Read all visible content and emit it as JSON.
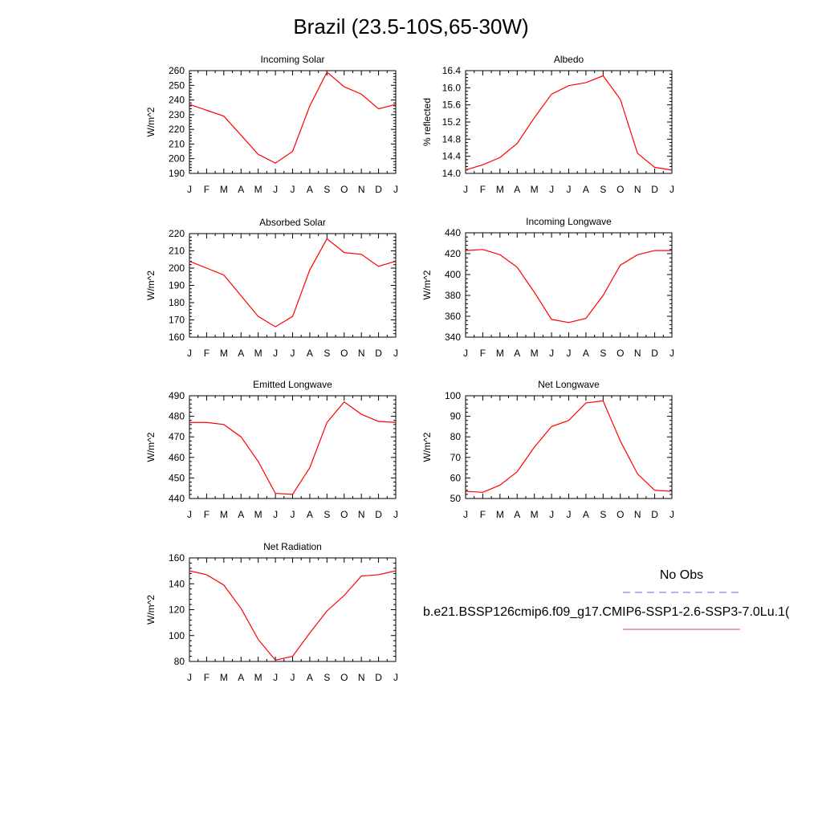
{
  "title": "Brazil (23.5-10S,65-30W)",
  "months": [
    "J",
    "F",
    "M",
    "A",
    "M",
    "J",
    "J",
    "A",
    "S",
    "O",
    "N",
    "D",
    "J"
  ],
  "legend": {
    "obs_label": "No Obs",
    "obs_color": "#6a6ae0",
    "model_label": "b.e21.BSSP126cmip6.f09_g17.CMIP6-SSP1-2.6-SSP3-7.0Lu.1(",
    "model_color": "#e04040"
  },
  "line_color": "#ff0000",
  "chart_data": [
    {
      "type": "line",
      "title": "Incoming Solar",
      "ylabel": "W/m^2",
      "ylim": [
        190,
        260
      ],
      "yticks": [
        190,
        200,
        210,
        220,
        230,
        240,
        250,
        260
      ],
      "ytick_labels": [
        "190",
        "200",
        "210",
        "220",
        "230",
        "240",
        "250",
        "260"
      ],
      "values": [
        237,
        233,
        229,
        216,
        203,
        197,
        205,
        236,
        259,
        249,
        244,
        234,
        237
      ]
    },
    {
      "type": "line",
      "title": "Albedo",
      "ylabel": "% reflected",
      "ylim": [
        14.0,
        16.4
      ],
      "yticks": [
        14.0,
        14.4,
        14.8,
        15.2,
        15.6,
        16.0,
        16.4
      ],
      "ytick_labels": [
        "14.0",
        "14.4",
        "14.8",
        "15.2",
        "15.6",
        "16.0",
        "16.4"
      ],
      "values": [
        14.08,
        14.2,
        14.37,
        14.7,
        15.3,
        15.85,
        16.05,
        16.12,
        16.28,
        15.73,
        14.47,
        14.14,
        14.08
      ]
    },
    {
      "type": "line",
      "title": "Absorbed Solar",
      "ylabel": "W/m^2",
      "ylim": [
        160,
        220
      ],
      "yticks": [
        160,
        170,
        180,
        190,
        200,
        210,
        220
      ],
      "ytick_labels": [
        "160",
        "170",
        "180",
        "190",
        "200",
        "210",
        "220"
      ],
      "values": [
        204,
        200,
        196,
        184,
        172,
        166,
        172,
        199,
        217,
        209,
        208,
        201,
        204
      ]
    },
    {
      "type": "line",
      "title": "Incoming Longwave",
      "ylabel": "W/m^2",
      "ylim": [
        340,
        440
      ],
      "yticks": [
        340,
        360,
        380,
        400,
        420,
        440
      ],
      "ytick_labels": [
        "340",
        "360",
        "380",
        "400",
        "420",
        "440"
      ],
      "values": [
        423,
        424,
        419,
        407,
        383,
        357,
        354,
        358,
        380,
        409,
        419,
        423,
        423
      ]
    },
    {
      "type": "line",
      "title": "Emitted Longwave",
      "ylabel": "W/m^2",
      "ylim": [
        440,
        490
      ],
      "yticks": [
        440,
        450,
        460,
        470,
        480,
        490
      ],
      "ytick_labels": [
        "440",
        "450",
        "460",
        "470",
        "480",
        "490"
      ],
      "values": [
        477,
        477,
        476,
        470,
        458,
        442.5,
        442,
        455,
        477,
        487,
        481,
        477.5,
        477
      ]
    },
    {
      "type": "line",
      "title": "Net Longwave",
      "ylabel": "W/m^2",
      "ylim": [
        50,
        100
      ],
      "yticks": [
        50,
        60,
        70,
        80,
        90,
        100
      ],
      "ytick_labels": [
        "50",
        "60",
        "70",
        "80",
        "90",
        "100"
      ],
      "values": [
        53.5,
        53,
        56.5,
        63,
        75,
        85,
        88,
        96.5,
        97.5,
        78,
        62,
        54,
        53.5
      ]
    },
    {
      "type": "line",
      "title": "Net Radiation",
      "ylabel": "W/m^2",
      "ylim": [
        80,
        160
      ],
      "yticks": [
        80,
        100,
        120,
        140,
        160
      ],
      "ytick_labels": [
        "80",
        "100",
        "120",
        "140",
        "160"
      ],
      "values": [
        150,
        147,
        139,
        121,
        97,
        81,
        84,
        102,
        119,
        131,
        146,
        147,
        150
      ]
    }
  ]
}
